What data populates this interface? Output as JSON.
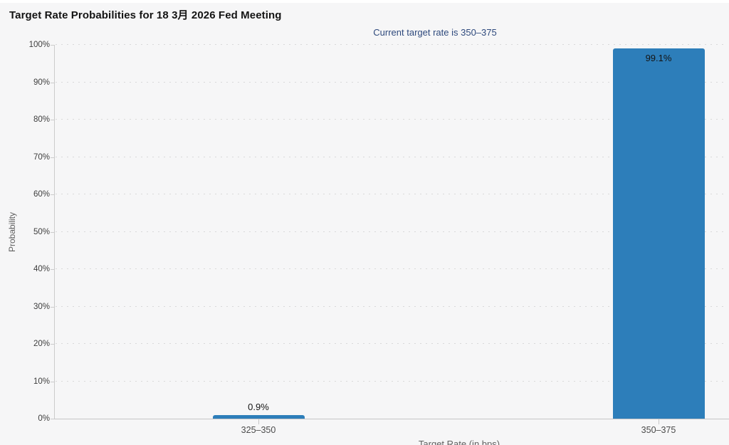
{
  "header": {
    "title": "Target Rate Probabilities for 18 3月 2026 Fed Meeting",
    "subtitle": "Current target rate is 350–375"
  },
  "chart_data": {
    "type": "bar",
    "title": "Target Rate Probabilities for 18 3月 2026 Fed Meeting",
    "subtitle": "Current target rate is 350–375",
    "categories": [
      "325–350",
      "350–375"
    ],
    "values": [
      0.9,
      99.1
    ],
    "value_labels": [
      "0.9%",
      "99.1%"
    ],
    "xlabel": "Target Rate (in bps)",
    "ylabel": "Probability",
    "ylim": [
      0,
      100
    ],
    "ytick_step": 10,
    "ytick_labels": [
      "0%",
      "10%",
      "20%",
      "30%",
      "40%",
      "50%",
      "60%",
      "70%",
      "80%",
      "90%",
      "100%"
    ],
    "grid": "horizontal-dotted",
    "legend": "none",
    "bar_color": "#2d7eba",
    "subtitle_color": "#2f4a7d",
    "background_color": "#f6f6f7"
  }
}
